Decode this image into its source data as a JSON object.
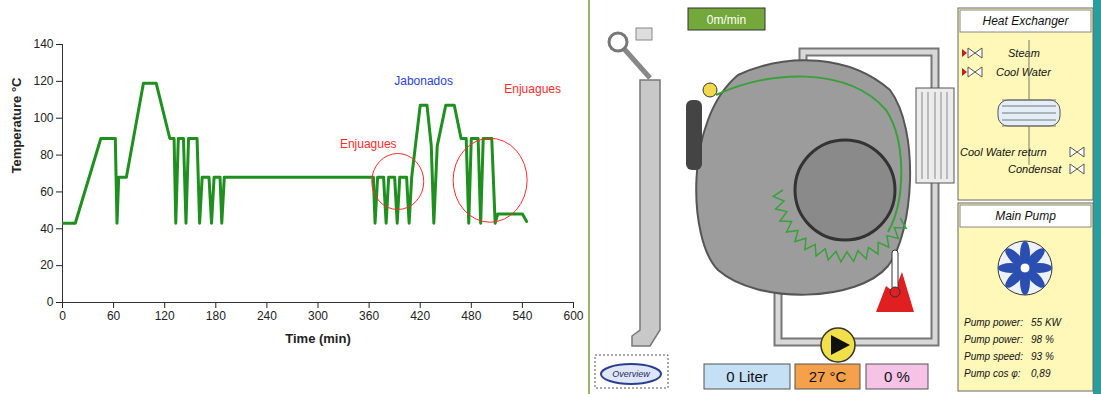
{
  "chart_data": {
    "type": "line",
    "x_label": "Time (min)",
    "y_label": "Temperature °C",
    "x": [
      0,
      15,
      45,
      62,
      64,
      66,
      75,
      95,
      110,
      126,
      131,
      133,
      136,
      142,
      145,
      148,
      158,
      161,
      164,
      172,
      175,
      178,
      185,
      187,
      190,
      365,
      367,
      370,
      377,
      380,
      383,
      390,
      393,
      396,
      404,
      407,
      410,
      420,
      428,
      433,
      436,
      440,
      450,
      460,
      468,
      474,
      477,
      480,
      488,
      491,
      494,
      504,
      508,
      511,
      540,
      545
    ],
    "values": [
      43,
      43,
      89,
      89,
      43,
      68,
      68,
      119,
      119,
      89,
      89,
      43,
      89,
      89,
      43,
      89,
      89,
      43,
      68,
      68,
      43,
      68,
      68,
      43,
      68,
      68,
      43,
      68,
      68,
      43,
      68,
      68,
      43,
      68,
      68,
      43,
      68,
      107,
      107,
      85,
      43,
      85,
      107,
      107,
      89,
      89,
      43,
      89,
      89,
      43,
      89,
      89,
      43,
      48,
      48,
      44
    ],
    "color": "#1f8f1f",
    "xlim": [
      0,
      600
    ],
    "ylim": [
      0,
      140
    ],
    "xticks": [
      0,
      60,
      120,
      180,
      240,
      300,
      360,
      420,
      480,
      540,
      600
    ],
    "yticks": [
      0,
      20,
      40,
      60,
      80,
      100,
      120,
      140
    ],
    "annotations": [
      {
        "text": "Enjuagues",
        "x": 359,
        "y": 86,
        "color": "#ff2a2a"
      },
      {
        "text": "Jabonados",
        "x": 424,
        "y": 120,
        "color": "#2a3fd8"
      },
      {
        "text": "Enjuagues",
        "x": 552,
        "y": 116,
        "color": "#ff2a2a"
      }
    ]
  },
  "diagram": {
    "speed_display": "0m/min",
    "overview_button": "Overview",
    "readouts": [
      "0 Liter",
      "27 °C",
      "0 %"
    ],
    "heat_exchanger": {
      "title": "Heat Exchanger",
      "labels": [
        "Steam",
        "Cool Water",
        "Cool Water return",
        "Condensat"
      ]
    },
    "main_pump": {
      "title": "Main Pump",
      "parameters": [
        {
          "label": "Pump power:",
          "value": "55 KW"
        },
        {
          "label": "Pump power:",
          "value": "98 %"
        },
        {
          "label": "Pump speed:",
          "value": "93 %"
        },
        {
          "label": "Pump cos φ:",
          "value": "0,89"
        }
      ]
    }
  }
}
